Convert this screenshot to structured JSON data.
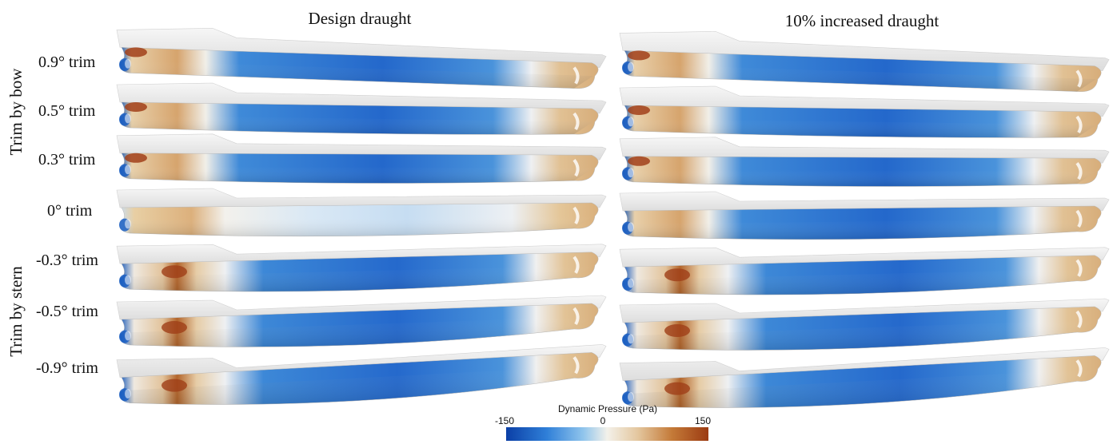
{
  "columns": {
    "design": "Design draught",
    "increased": "10% increased draught"
  },
  "groups": {
    "bow": "Trim by bow",
    "stern": "Trim by stern"
  },
  "rows": [
    {
      "key": "t09",
      "label": "0.9° trim",
      "group": "bow",
      "trim_deg": 0.9
    },
    {
      "key": "t05",
      "label": "0.5° trim",
      "group": "bow",
      "trim_deg": 0.5
    },
    {
      "key": "t03",
      "label": "0.3° trim",
      "group": "bow",
      "trim_deg": 0.3
    },
    {
      "key": "t00",
      "label": "0° trim",
      "group": "none",
      "trim_deg": 0
    },
    {
      "key": "tm03",
      "label": "-0.3° trim",
      "group": "stern",
      "trim_deg": -0.3
    },
    {
      "key": "tm05",
      "label": "-0.5° trim",
      "group": "stern",
      "trim_deg": -0.5
    },
    {
      "key": "tm09",
      "label": "-0.9° trim",
      "group": "stern",
      "trim_deg": -0.9
    }
  ],
  "colorbar": {
    "title": "Dynamic Pressure (Pa)",
    "min_label": "-150",
    "mid_label": "0",
    "max_label": "150",
    "colors": [
      "#0b3fa6",
      "#2f7fd8",
      "#8fc4ec",
      "#f3f1ea",
      "#e4c79f",
      "#c47a38",
      "#9c3b12"
    ]
  },
  "colors": {
    "hull_top": "#e9e9e9",
    "hull_shadow": "#cfcfcf",
    "blue_strong": "#1d5fc8",
    "blue_mid": "#4f96dd",
    "blue_light": "#b9d7ef",
    "warm_light": "#e9cfa8",
    "warm_mid": "#cf9355",
    "warm_strong": "#a1401a"
  }
}
